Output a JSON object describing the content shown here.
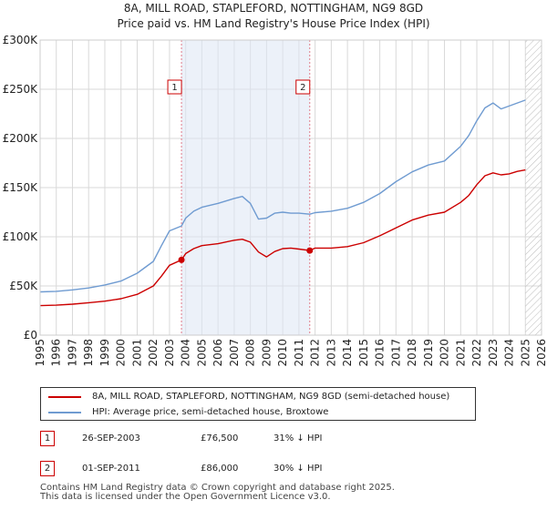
{
  "header": {
    "title_line1": "8A, MILL ROAD, STAPLEFORD, NOTTINGHAM, NG9 8GD",
    "title_line2": "Price paid vs. HM Land Registry's House Price Index (HPI)"
  },
  "colors": {
    "property": "#cc0000",
    "hpi": "#6f9bd1",
    "shade": "#dde6f4",
    "grid": "#d9d9d9",
    "marker_line": "#e07b8a"
  },
  "chart_data": {
    "type": "line",
    "title": "Price paid vs. HM Land Registry's House Price Index (HPI)",
    "xlabel": "",
    "ylabel": "",
    "xlim": [
      1995,
      2026
    ],
    "ylim": [
      0,
      300000
    ],
    "y_ticks": [
      {
        "value": 0,
        "label": "£0"
      },
      {
        "value": 50000,
        "label": "£50K"
      },
      {
        "value": 100000,
        "label": "£100K"
      },
      {
        "value": 150000,
        "label": "£150K"
      },
      {
        "value": 200000,
        "label": "£200K"
      },
      {
        "value": 250000,
        "label": "£250K"
      },
      {
        "value": 300000,
        "label": "£300K"
      }
    ],
    "x_ticks": [
      "1995",
      "1996",
      "1997",
      "1998",
      "1999",
      "2000",
      "2001",
      "2002",
      "2003",
      "2004",
      "2005",
      "2006",
      "2007",
      "2008",
      "2009",
      "2010",
      "2011",
      "2012",
      "2013",
      "2014",
      "2015",
      "2016",
      "2017",
      "2018",
      "2019",
      "2020",
      "2021",
      "2022",
      "2023",
      "2024",
      "2025",
      "2026"
    ],
    "shaded_region": [
      2003.74,
      2011.67
    ],
    "hatched_after": 2025.0,
    "series": [
      {
        "name": "8A, MILL ROAD, STAPLEFORD, NOTTINGHAM, NG9 8GD (semi-detached house)",
        "color": "#cc0000",
        "x": [
          1995,
          1996,
          1997,
          1998,
          1999,
          2000,
          2001,
          2002,
          2002.5,
          2003,
          2003.74,
          2004,
          2004.5,
          2005,
          2006,
          2007,
          2007.5,
          2008,
          2008.5,
          2009,
          2009.5,
          2010,
          2010.5,
          2011,
          2011.67,
          2012,
          2013,
          2014,
          2015,
          2016,
          2017,
          2018,
          2019,
          2020,
          2021,
          2021.5,
          2022,
          2022.5,
          2023,
          2023.5,
          2024,
          2024.5,
          2025
        ],
        "values": [
          30000,
          30500,
          31500,
          33000,
          34500,
          37000,
          41500,
          50000,
          60000,
          71000,
          76500,
          83000,
          88000,
          91000,
          93000,
          96500,
          97500,
          94500,
          84500,
          79500,
          85000,
          88000,
          88500,
          87500,
          86000,
          88500,
          88500,
          90000,
          94000,
          101000,
          109000,
          117000,
          122000,
          125000,
          135000,
          142000,
          153000,
          162000,
          165000,
          163000,
          164000,
          166500,
          168000
        ]
      },
      {
        "name": "HPI: Average price, semi-detached house, Broxtowe",
        "color": "#6f9bd1",
        "x": [
          1995,
          1996,
          1997,
          1998,
          1999,
          2000,
          2001,
          2002,
          2002.5,
          2003,
          2003.74,
          2004,
          2004.5,
          2005,
          2006,
          2007,
          2007.5,
          2008,
          2008.5,
          2009,
          2009.5,
          2010,
          2010.5,
          2011,
          2011.67,
          2012,
          2013,
          2014,
          2015,
          2016,
          2017,
          2018,
          2019,
          2020,
          2021,
          2021.5,
          2022,
          2022.5,
          2023,
          2023.5,
          2024,
          2024.5,
          2025
        ],
        "values": [
          44000,
          44500,
          46000,
          48000,
          51000,
          55000,
          63000,
          75000,
          91000,
          106000,
          111000,
          119000,
          126000,
          130000,
          134000,
          139000,
          141000,
          134000,
          118000,
          119000,
          124000,
          125000,
          124000,
          124000,
          123000,
          124500,
          126000,
          129000,
          135000,
          144000,
          156000,
          166000,
          173000,
          177000,
          192000,
          203000,
          218000,
          231000,
          236000,
          230000,
          233000,
          236000,
          239000
        ]
      }
    ],
    "markers": [
      {
        "label": "1",
        "x": 2003.74,
        "value": 76500
      },
      {
        "label": "2",
        "x": 2011.67,
        "value": 86000
      }
    ]
  },
  "legend": {
    "property_label": "8A, MILL ROAD, STAPLEFORD, NOTTINGHAM, NG9 8GD (semi-detached house)",
    "hpi_label": "HPI: Average price, semi-detached house, Broxtowe"
  },
  "transactions": [
    {
      "num": "1",
      "date": "26-SEP-2003",
      "price": "£76,500",
      "hpi": "31% ↓ HPI"
    },
    {
      "num": "2",
      "date": "01-SEP-2011",
      "price": "£86,000",
      "hpi": "30% ↓ HPI"
    }
  ],
  "footer": {
    "line1": "Contains HM Land Registry data © Crown copyright and database right 2025.",
    "line2": "This data is licensed under the Open Government Licence v3.0."
  }
}
